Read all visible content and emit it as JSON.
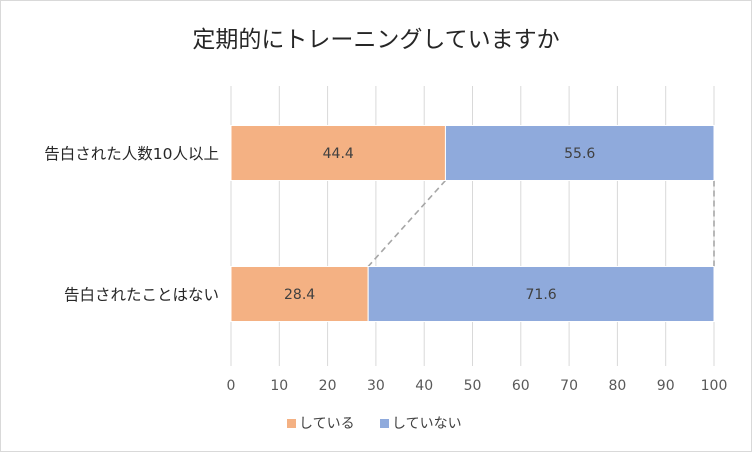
{
  "chart_data": {
    "type": "bar",
    "orientation": "horizontal",
    "stacked": true,
    "title": "定期的にトレーニングしていますか",
    "categories": [
      "告白された人数10人以上",
      "告白されたことはない"
    ],
    "series": [
      {
        "name": "している",
        "values": [
          44.4,
          28.4
        ],
        "color": "#f4b183"
      },
      {
        "name": "していない",
        "values": [
          55.6,
          71.6
        ],
        "color": "#8faadc"
      }
    ],
    "xlim": [
      0,
      100
    ],
    "xticks": [
      "0",
      "10",
      "20",
      "30",
      "40",
      "50",
      "60",
      "70",
      "80",
      "90",
      "100"
    ],
    "grid": true,
    "series_lines": true,
    "legend_position": "bottom"
  }
}
